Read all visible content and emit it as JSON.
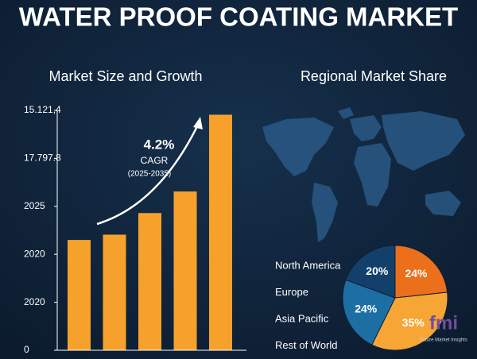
{
  "title": "WATER PROOF COATING MARKET",
  "chart_data": [
    {
      "type": "bar",
      "title": "Market Size and Growth",
      "categories": [
        null,
        null,
        null,
        null,
        null
      ],
      "values": [
        2.3,
        2.41,
        2.86,
        3.31,
        4.91
      ],
      "color": "#f6a12c",
      "ylim": [
        0,
        5
      ],
      "yticks": [
        {
          "value": 0,
          "label": "0"
        },
        {
          "value": 1,
          "label": "2020"
        },
        {
          "value": 2,
          "label": "2020"
        },
        {
          "value": 3,
          "label": "2025"
        },
        {
          "value": 4,
          "label": "17.797.8"
        },
        {
          "value": 5,
          "label": "15.121,4"
        }
      ],
      "annotations": [
        "4.2%",
        "CAGR",
        "(2025-2035)"
      ]
    },
    {
      "type": "pie",
      "title": "Regional Market Share",
      "categories": [
        "North America",
        "Europe",
        "Asia Pacific",
        "Rest of World"
      ],
      "values": [
        24,
        35,
        24,
        20
      ],
      "value_labels": [
        "24%",
        "35%",
        "24%",
        "20%"
      ],
      "colors": [
        "#ec6f1c",
        "#f7a635",
        "#1d6fa3",
        "#13406b"
      ]
    }
  ],
  "logo": {
    "text": "fmi",
    "tagline": "Future Market Insights"
  }
}
